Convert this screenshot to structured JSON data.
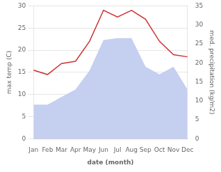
{
  "chart_data": {
    "type": "line",
    "xlabel": "date (month)",
    "ylabel": "max temp (C)",
    "y2label": "med. precipitation (kg/m2)",
    "categories": [
      "Jan",
      "Feb",
      "Mar",
      "Apr",
      "May",
      "Jun",
      "Jul",
      "Aug",
      "Sep",
      "Oct",
      "Nov",
      "Dec"
    ],
    "series": [
      {
        "type": "line",
        "color": "#cc3333",
        "values": [
          15.5,
          14.5,
          17.0,
          17.5,
          22.0,
          29.0,
          27.5,
          29.0,
          27.0,
          22.0,
          19.0,
          18.5
        ]
      },
      {
        "type": "area",
        "axis": "y2",
        "color": "#c5cff0",
        "values": [
          9.0,
          9.0,
          11.0,
          13.0,
          18.0,
          26.0,
          26.5,
          26.5,
          19.0,
          17.0,
          19.0,
          13.0
        ]
      }
    ],
    "ylim": [
      0,
      30
    ],
    "yticks": [
      0,
      5,
      10,
      15,
      20,
      25,
      30
    ],
    "y2lim": [
      0,
      35
    ],
    "y2ticks": [
      0,
      5,
      10,
      15,
      20,
      25,
      30,
      35
    ],
    "grid": true
  }
}
